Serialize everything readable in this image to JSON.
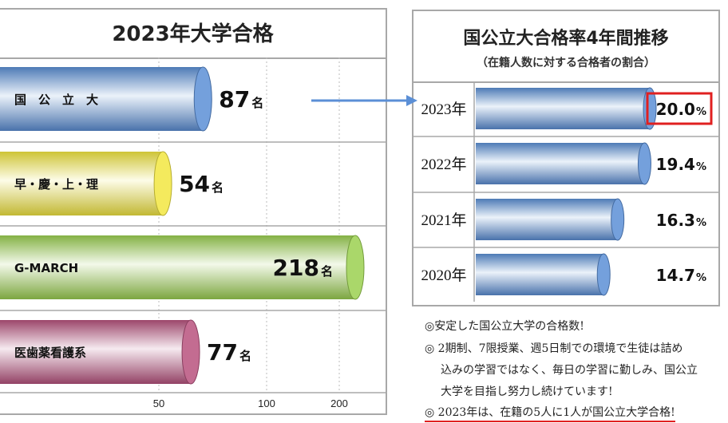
{
  "chart_data": [
    {
      "type": "bar",
      "title": "2023年大学合格",
      "categories": [
        "国　公　立　大",
        "早・慶・上・理",
        "G-MARCH",
        "医歯薬看護系"
      ],
      "values": [
        87,
        54,
        218,
        77
      ],
      "value_labels": [
        "87",
        "54",
        "218",
        "77"
      ],
      "unit": "名",
      "x_ticks": [
        "50",
        "100",
        "200"
      ],
      "colors": [
        "#5b8fd6",
        "#f2e640",
        "#9bd050",
        "#b8527e"
      ]
    },
    {
      "type": "bar",
      "title": "国公立大合格率4年間推移",
      "subtitle": "（在籍人数に対する合格者の割合）",
      "categories": [
        "2023年",
        "2022年",
        "2021年",
        "2020年"
      ],
      "values": [
        20.0,
        19.4,
        16.3,
        14.7
      ],
      "value_labels": [
        "20.0",
        "19.4",
        "16.3",
        "14.7"
      ],
      "unit": "%",
      "highlight_index": 0,
      "colors": [
        "#5b8fd6"
      ]
    }
  ],
  "notes": [
    "◎安定した国公立大学の合格数!",
    "◎ 2期制、7限授業、週5日制での環境で生徒は詰め",
    "込みの学習ではなく、毎日の学習に勤しみ、国公立",
    "大学を目指し努力し続けています!",
    "◎ 2023年は、在籍の5人に1人が国公立大学合格!"
  ],
  "colors": {
    "highlight_box": "#e02020",
    "underline": "#e02020",
    "arrow": "#5b8fd6"
  }
}
